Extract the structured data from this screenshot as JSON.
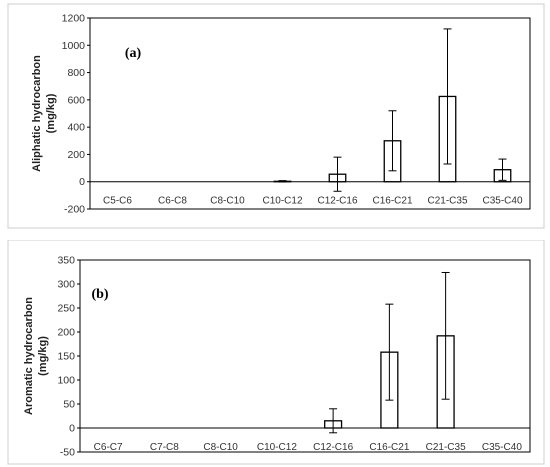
{
  "chart_data": [
    {
      "type": "bar",
      "panel_label": "(a)",
      "ylabel_line1": "Aliphatic hydrocarbon",
      "ylabel_line2": "(mg/kg)",
      "ylim": [
        -200,
        1200
      ],
      "ytick_step": 200,
      "categories": [
        "C5-C6",
        "C6-C8",
        "C8-C10",
        "C10-C12",
        "C12-C16",
        "C16-C21",
        "C21-C35",
        "C35-C40"
      ],
      "values": [
        0,
        0,
        0,
        3,
        55,
        300,
        625,
        88
      ],
      "errors": [
        0,
        0,
        0,
        5,
        125,
        220,
        495,
        78
      ]
    },
    {
      "type": "bar",
      "panel_label": "(b)",
      "ylabel_line1": "Aromatic hydrocarbon",
      "ylabel_line2": "(mg/kg)",
      "ylim": [
        -50,
        350
      ],
      "ytick_step": 50,
      "categories": [
        "C6-C7",
        "C7-C8",
        "C8-C10",
        "C10-C12",
        "C12-C16",
        "C16-C21",
        "C21-C35",
        "C35-C40"
      ],
      "values": [
        0,
        0,
        0,
        0,
        15,
        158,
        192,
        0
      ],
      "errors": [
        0,
        0,
        0,
        0,
        25,
        100,
        132,
        0
      ]
    }
  ]
}
